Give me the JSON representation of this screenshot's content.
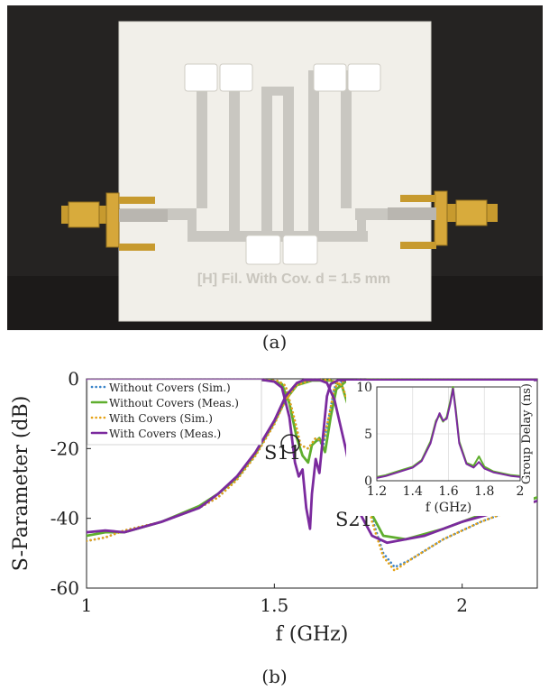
{
  "photo": {
    "board_label": "[H] Fil. With Cov. d = 1.5 mm",
    "colors": {
      "background": "#252322",
      "board": "#f1efe9",
      "trace": "#c9c7c1",
      "connector": "#c79a2e"
    }
  },
  "captions": {
    "a": "(a)",
    "b": "(b)"
  },
  "chart_data": [
    {
      "type": "line",
      "title": "",
      "xlabel": "f (GHz)",
      "ylabel": "S-Parameter (dB)",
      "xlim": [
        1.0,
        2.2
      ],
      "ylim": [
        -60,
        0
      ],
      "xticks": [
        "1",
        "1.5",
        "2"
      ],
      "yticks": [
        "0",
        "-20",
        "-40",
        "-60"
      ],
      "grid": false,
      "legend": "top-left",
      "annotations": [
        "S11",
        "S21"
      ],
      "series": [
        {
          "name": "Without Covers (Sim.)",
          "color": "#3a84c9",
          "style": "dotted",
          "s21": [
            [
              1.0,
              -46.5
            ],
            [
              1.05,
              -45.5
            ],
            [
              1.1,
              -43.5
            ],
            [
              1.2,
              -41
            ],
            [
              1.3,
              -37
            ],
            [
              1.35,
              -34
            ],
            [
              1.4,
              -29
            ],
            [
              1.45,
              -22
            ],
            [
              1.5,
              -13
            ],
            [
              1.53,
              -6
            ],
            [
              1.56,
              -1.8
            ],
            [
              1.6,
              -0.3
            ],
            [
              1.65,
              -0.3
            ],
            [
              1.68,
              -1.8
            ],
            [
              1.7,
              -8
            ],
            [
              1.73,
              -24
            ],
            [
              1.76,
              -40
            ],
            [
              1.79,
              -50
            ],
            [
              1.82,
              -54
            ],
            [
              1.86,
              -52
            ],
            [
              1.95,
              -46
            ],
            [
              2.05,
              -41
            ],
            [
              2.2,
              -35
            ]
          ],
          "s11": [
            [
              1.0,
              -0.3
            ],
            [
              1.48,
              -0.3
            ],
            [
              1.51,
              -0.6
            ],
            [
              1.53,
              -2
            ],
            [
              1.55,
              -10
            ],
            [
              1.57,
              -19
            ],
            [
              1.59,
              -20
            ],
            [
              1.61,
              -17
            ],
            [
              1.63,
              -19
            ],
            [
              1.645,
              -11
            ],
            [
              1.66,
              -2.5
            ],
            [
              1.68,
              -0.8
            ],
            [
              1.72,
              -0.3
            ],
            [
              2.2,
              -0.3
            ]
          ]
        },
        {
          "name": "Without Covers (Meas.)",
          "color": "#5fae2e",
          "style": "solid",
          "s21": [
            [
              1.0,
              -45
            ],
            [
              1.05,
              -44
            ],
            [
              1.1,
              -44
            ],
            [
              1.2,
              -41
            ],
            [
              1.3,
              -36.5
            ],
            [
              1.35,
              -33
            ],
            [
              1.4,
              -28.5
            ],
            [
              1.45,
              -21.5
            ],
            [
              1.5,
              -12.5
            ],
            [
              1.53,
              -6
            ],
            [
              1.56,
              -1.8
            ],
            [
              1.6,
              -0.5
            ],
            [
              1.65,
              -0.5
            ],
            [
              1.68,
              -2
            ],
            [
              1.7,
              -9
            ],
            [
              1.73,
              -25
            ],
            [
              1.76,
              -39
            ],
            [
              1.79,
              -45
            ],
            [
              1.85,
              -46
            ],
            [
              1.95,
              -43
            ],
            [
              2.05,
              -39
            ],
            [
              2.2,
              -34
            ]
          ],
          "s11": [
            [
              1.0,
              -0.3
            ],
            [
              1.49,
              -0.4
            ],
            [
              1.52,
              -1.5
            ],
            [
              1.54,
              -7
            ],
            [
              1.56,
              -17
            ],
            [
              1.575,
              -22
            ],
            [
              1.59,
              -24
            ],
            [
              1.6,
              -19
            ],
            [
              1.62,
              -17
            ],
            [
              1.635,
              -21
            ],
            [
              1.65,
              -11
            ],
            [
              1.665,
              -3
            ],
            [
              1.69,
              -0.8
            ],
            [
              1.75,
              -0.3
            ],
            [
              2.2,
              -0.3
            ]
          ]
        },
        {
          "name": "With Covers (Sim.)",
          "color": "#e6a317",
          "style": "dotted",
          "s21": [
            [
              1.0,
              -46.5
            ],
            [
              1.05,
              -45.5
            ],
            [
              1.1,
              -43.5
            ],
            [
              1.2,
              -41
            ],
            [
              1.3,
              -37
            ],
            [
              1.35,
              -34
            ],
            [
              1.4,
              -29
            ],
            [
              1.45,
              -22
            ],
            [
              1.5,
              -13
            ],
            [
              1.53,
              -6
            ],
            [
              1.56,
              -1.8
            ],
            [
              1.6,
              -0.3
            ],
            [
              1.65,
              -0.3
            ],
            [
              1.68,
              -1.8
            ],
            [
              1.7,
              -8
            ],
            [
              1.73,
              -24
            ],
            [
              1.76,
              -41
            ],
            [
              1.79,
              -51
            ],
            [
              1.82,
              -55
            ],
            [
              1.86,
              -52
            ],
            [
              1.95,
              -46
            ],
            [
              2.05,
              -41
            ],
            [
              2.2,
              -35
            ]
          ],
          "s11": [
            [
              1.0,
              -0.3
            ],
            [
              1.48,
              -0.3
            ],
            [
              1.51,
              -0.6
            ],
            [
              1.53,
              -2
            ],
            [
              1.55,
              -10
            ],
            [
              1.57,
              -19
            ],
            [
              1.59,
              -20
            ],
            [
              1.61,
              -17
            ],
            [
              1.63,
              -18
            ],
            [
              1.645,
              -11
            ],
            [
              1.66,
              -2.5
            ],
            [
              1.68,
              -0.8
            ],
            [
              1.72,
              -0.3
            ],
            [
              2.2,
              -0.3
            ]
          ]
        },
        {
          "name": "With Covers (Meas.)",
          "color": "#7b2a9e",
          "style": "solid",
          "s21": [
            [
              1.0,
              -44
            ],
            [
              1.05,
              -43.5
            ],
            [
              1.1,
              -44
            ],
            [
              1.2,
              -41
            ],
            [
              1.3,
              -37
            ],
            [
              1.35,
              -33
            ],
            [
              1.4,
              -28
            ],
            [
              1.45,
              -21
            ],
            [
              1.5,
              -12
            ],
            [
              1.53,
              -5
            ],
            [
              1.56,
              -1.2
            ],
            [
              1.58,
              -0.3
            ],
            [
              1.62,
              -0.3
            ],
            [
              1.64,
              -1.2
            ],
            [
              1.66,
              -6
            ],
            [
              1.69,
              -20
            ],
            [
              1.72,
              -37
            ],
            [
              1.76,
              -45
            ],
            [
              1.8,
              -47
            ],
            [
              1.9,
              -45
            ],
            [
              2.0,
              -41
            ],
            [
              2.1,
              -38
            ],
            [
              2.2,
              -35
            ]
          ],
          "s11": [
            [
              1.0,
              -0.3
            ],
            [
              1.47,
              -0.3
            ],
            [
              1.5,
              -0.8
            ],
            [
              1.52,
              -2.5
            ],
            [
              1.54,
              -11
            ],
            [
              1.555,
              -24
            ],
            [
              1.565,
              -28
            ],
            [
              1.575,
              -26
            ],
            [
              1.585,
              -37
            ],
            [
              1.595,
              -43
            ],
            [
              1.6,
              -33
            ],
            [
              1.61,
              -23
            ],
            [
              1.62,
              -27
            ],
            [
              1.63,
              -16
            ],
            [
              1.64,
              -5
            ],
            [
              1.65,
              -1.5
            ],
            [
              1.67,
              -0.4
            ],
            [
              2.2,
              -0.3
            ]
          ]
        }
      ]
    },
    {
      "type": "line",
      "title": "",
      "xlabel": "f (GHz)",
      "ylabel": "Group Delay (ns)",
      "xlim": [
        1.2,
        2.0
      ],
      "ylim": [
        0,
        10
      ],
      "xticks": [
        "1.2",
        "1.4",
        "1.6",
        "1.8",
        "2"
      ],
      "yticks": [
        "0",
        "5",
        "10"
      ],
      "grid": true,
      "series": [
        {
          "name": "Without Covers (Meas.)",
          "color": "#5fae2e",
          "values": [
            [
              1.2,
              0.4
            ],
            [
              1.25,
              0.6
            ],
            [
              1.3,
              0.9
            ],
            [
              1.35,
              1.2
            ],
            [
              1.4,
              1.5
            ],
            [
              1.45,
              2.2
            ],
            [
              1.5,
              4.2
            ],
            [
              1.53,
              6.4
            ],
            [
              1.55,
              7.0
            ],
            [
              1.57,
              6.3
            ],
            [
              1.59,
              6.8
            ],
            [
              1.61,
              8.5
            ],
            [
              1.625,
              10
            ],
            [
              1.64,
              7.8
            ],
            [
              1.66,
              4.2
            ],
            [
              1.7,
              1.9
            ],
            [
              1.74,
              1.6
            ],
            [
              1.77,
              2.6
            ],
            [
              1.8,
              1.5
            ],
            [
              1.85,
              1.0
            ],
            [
              1.9,
              0.8
            ],
            [
              1.95,
              0.6
            ],
            [
              2.0,
              0.5
            ]
          ]
        },
        {
          "name": "With Covers (Meas.)",
          "color": "#7b2a9e",
          "values": [
            [
              1.2,
              0.3
            ],
            [
              1.25,
              0.5
            ],
            [
              1.3,
              0.8
            ],
            [
              1.35,
              1.1
            ],
            [
              1.4,
              1.4
            ],
            [
              1.45,
              2.1
            ],
            [
              1.5,
              4.0
            ],
            [
              1.53,
              6.2
            ],
            [
              1.55,
              7.2
            ],
            [
              1.57,
              6.4
            ],
            [
              1.59,
              6.6
            ],
            [
              1.61,
              8.2
            ],
            [
              1.625,
              9.8
            ],
            [
              1.64,
              7.5
            ],
            [
              1.66,
              4.0
            ],
            [
              1.7,
              1.8
            ],
            [
              1.74,
              1.4
            ],
            [
              1.77,
              2.0
            ],
            [
              1.8,
              1.3
            ],
            [
              1.85,
              0.9
            ],
            [
              1.9,
              0.7
            ],
            [
              1.95,
              0.5
            ],
            [
              2.0,
              0.4
            ]
          ]
        }
      ]
    }
  ]
}
